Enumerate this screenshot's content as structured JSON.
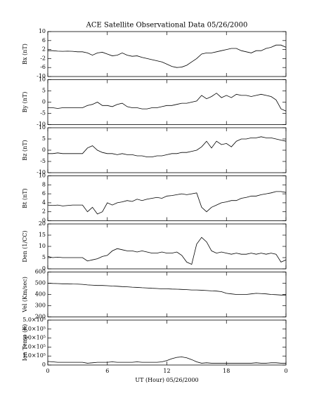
{
  "chart_data": [
    {
      "type": "line",
      "title": "ACE Satellite Observational Data  05/26/2000",
      "ylabel": "Bx (nT)",
      "color": "#000000",
      "x": [
        0,
        0.5,
        1,
        1.5,
        2,
        2.5,
        3,
        3.5,
        4,
        4.5,
        5,
        5.5,
        6,
        6.5,
        7,
        7.5,
        8,
        8.5,
        9,
        9.5,
        10,
        10.5,
        11,
        11.5,
        12,
        12.5,
        13,
        13.5,
        14,
        14.5,
        15,
        15.5,
        16,
        16.5,
        17,
        17.5,
        18,
        18.5,
        19,
        19.5,
        20,
        20.5,
        21,
        21.5,
        22,
        22.5,
        23,
        23.5,
        24
      ],
      "values": [
        1.5,
        1.5,
        1.3,
        1.2,
        1.3,
        1.2,
        1,
        1,
        0.5,
        -0.5,
        0.5,
        0.8,
        0,
        -0.8,
        -0.5,
        0.5,
        -0.5,
        -1,
        -0.8,
        -1.5,
        -2,
        -2.5,
        -3,
        -3.5,
        -4.5,
        -5.5,
        -6,
        -5.8,
        -5,
        -3.5,
        -2,
        0,
        0.5,
        0.5,
        1,
        1.5,
        2,
        2.5,
        2.5,
        1.5,
        1,
        0.5,
        1.5,
        1.5,
        2.5,
        3,
        4,
        4,
        3
      ],
      "xlim": [
        0,
        24
      ],
      "ylim": [
        -10,
        10
      ],
      "yticks": [
        -10,
        -6,
        -2,
        2,
        6,
        10
      ]
    },
    {
      "type": "line",
      "ylabel": "By (nT)",
      "color": "#000000",
      "x": [
        0,
        0.5,
        1,
        1.5,
        2,
        2.5,
        3,
        3.5,
        4,
        4.5,
        5,
        5.5,
        6,
        6.5,
        7,
        7.5,
        8,
        8.5,
        9,
        9.5,
        10,
        10.5,
        11,
        11.5,
        12,
        12.5,
        13,
        13.5,
        14,
        14.5,
        15,
        15.5,
        16,
        16.5,
        17,
        17.5,
        18,
        18.5,
        19,
        19.5,
        20,
        20.5,
        21,
        21.5,
        22,
        22.5,
        23,
        23.5,
        24
      ],
      "values": [
        -2.5,
        -2.5,
        -2.8,
        -2.5,
        -2.5,
        -2.5,
        -2.5,
        -2.5,
        -1.5,
        -1,
        0,
        -1.5,
        -1.5,
        -2,
        -1,
        -0.5,
        -2,
        -2.5,
        -2.5,
        -3,
        -3,
        -2.5,
        -2.5,
        -2,
        -1.5,
        -1.5,
        -1,
        -0.5,
        -0.5,
        0,
        0.5,
        3,
        1.5,
        2.5,
        4,
        2,
        3,
        2,
        3.5,
        3,
        3,
        2.5,
        3,
        3.5,
        3,
        2.5,
        1,
        -3,
        -4
      ],
      "xlim": [
        0,
        24
      ],
      "ylim": [
        -10,
        10
      ],
      "yticks": [
        -10,
        -5,
        0,
        5,
        10
      ]
    },
    {
      "type": "line",
      "ylabel": "Bz (nT)",
      "color": "#000000",
      "x": [
        0,
        0.5,
        1,
        1.5,
        2,
        2.5,
        3,
        3.5,
        4,
        4.5,
        5,
        5.5,
        6,
        6.5,
        7,
        7.5,
        8,
        8.5,
        9,
        9.5,
        10,
        10.5,
        11,
        11.5,
        12,
        12.5,
        13,
        13.5,
        14,
        14.5,
        15,
        15.5,
        16,
        16.5,
        17,
        17.5,
        18,
        18.5,
        19,
        19.5,
        20,
        20.5,
        21,
        21.5,
        22,
        22.5,
        23,
        23.5,
        24
      ],
      "values": [
        -1.5,
        -1.5,
        -1.2,
        -1.5,
        -1.5,
        -1.5,
        -1.5,
        -1.5,
        1,
        2,
        0,
        -1,
        -1.5,
        -1.5,
        -2,
        -1.5,
        -2,
        -2,
        -2.5,
        -2.5,
        -3,
        -3,
        -2.5,
        -2.5,
        -2,
        -1.5,
        -1.5,
        -1,
        -1,
        -0.5,
        0,
        1.5,
        4,
        1,
        4,
        2.5,
        3,
        1.5,
        4,
        5,
        5,
        5.5,
        5.5,
        6,
        5.5,
        5.5,
        5,
        4.5,
        4
      ],
      "xlim": [
        0,
        24
      ],
      "ylim": [
        -10,
        10
      ],
      "yticks": [
        -10,
        -5,
        0,
        5,
        10
      ]
    },
    {
      "type": "line",
      "ylabel": "Bt (nT)",
      "color": "#000000",
      "x": [
        0,
        0.5,
        1,
        1.5,
        2,
        2.5,
        3,
        3.5,
        4,
        4.5,
        5,
        5.5,
        6,
        6.5,
        7,
        7.5,
        8,
        8.5,
        9,
        9.5,
        10,
        10.5,
        11,
        11.5,
        12,
        12.5,
        13,
        13.5,
        14,
        14.5,
        15,
        15.5,
        16,
        16.5,
        17,
        17.5,
        18,
        18.5,
        19,
        19.5,
        20,
        20.5,
        21,
        21.5,
        22,
        22.5,
        23,
        23.5,
        24
      ],
      "values": [
        3.5,
        3.4,
        3.5,
        3.3,
        3.4,
        3.5,
        3.5,
        3.5,
        2,
        3,
        1.5,
        2,
        4,
        3.5,
        4,
        4.2,
        4.5,
        4.3,
        4.8,
        4.5,
        4.8,
        5,
        5.2,
        5,
        5.5,
        5.6,
        5.8,
        6,
        5.8,
        6,
        6.2,
        3,
        2,
        3,
        3.5,
        4,
        4.2,
        4.5,
        4.5,
        5,
        5.2,
        5.5,
        5.5,
        5.8,
        6,
        6.2,
        6.5,
        6.5,
        6.3
      ],
      "xlim": [
        0,
        24
      ],
      "ylim": [
        0,
        10
      ],
      "yticks": [
        0,
        2,
        4,
        6,
        8,
        10
      ]
    },
    {
      "type": "line",
      "ylabel": "Den (1/CC)",
      "color": "#000000",
      "x": [
        0,
        0.5,
        1,
        1.5,
        2,
        2.5,
        3,
        3.5,
        4,
        4.5,
        5,
        5.5,
        6,
        6.5,
        7,
        7.5,
        8,
        8.5,
        9,
        9.5,
        10,
        10.5,
        11,
        11.5,
        12,
        12.5,
        13,
        13.5,
        14,
        14.5,
        15,
        15.5,
        16,
        16.5,
        17,
        17.5,
        18,
        18.5,
        19,
        19.5,
        20,
        20.5,
        21,
        21.5,
        22,
        22.5,
        23,
        23.5,
        24
      ],
      "values": [
        5.5,
        5,
        5.2,
        5,
        5,
        5,
        5,
        5,
        3.5,
        4,
        4.5,
        5.5,
        6,
        8,
        9,
        8.5,
        8,
        8,
        7.5,
        8,
        7.5,
        7,
        7,
        7.5,
        7,
        7,
        7.5,
        6,
        3,
        2,
        11,
        14,
        12,
        8,
        7,
        7.5,
        7,
        6.5,
        7,
        6.5,
        6.5,
        7,
        6.5,
        7,
        6.5,
        7,
        6.5,
        3,
        4
      ],
      "xlim": [
        0,
        24
      ],
      "ylim": [
        0,
        20
      ],
      "yticks": [
        0,
        5,
        10,
        15,
        20
      ]
    },
    {
      "type": "line",
      "ylabel": "Vel (Km/sec)",
      "color": "#000000",
      "x": [
        0,
        0.5,
        1,
        1.5,
        2,
        2.5,
        3,
        3.5,
        4,
        4.5,
        5,
        5.5,
        6,
        6.5,
        7,
        7.5,
        8,
        8.5,
        9,
        9.5,
        10,
        10.5,
        11,
        11.5,
        12,
        12.5,
        13,
        13.5,
        14,
        14.5,
        15,
        15.5,
        16,
        16.5,
        17,
        17.5,
        18,
        18.5,
        19,
        19.5,
        20,
        20.5,
        21,
        21.5,
        22,
        22.5,
        23,
        23.5,
        24
      ],
      "values": [
        500,
        498,
        497,
        495,
        495,
        493,
        492,
        490,
        485,
        483,
        480,
        480,
        478,
        475,
        473,
        470,
        468,
        465,
        463,
        460,
        458,
        455,
        453,
        450,
        450,
        448,
        447,
        445,
        443,
        440,
        440,
        438,
        435,
        432,
        430,
        425,
        410,
        405,
        400,
        400,
        400,
        405,
        410,
        408,
        405,
        400,
        398,
        395,
        395
      ],
      "xlim": [
        0,
        24
      ],
      "ylim": [
        200,
        600
      ],
      "yticks": [
        200,
        300,
        400,
        500,
        600
      ]
    },
    {
      "type": "line",
      "ylabel": "Ion Temp (K)",
      "xlabel": "UT (Hour)  05/26/2000",
      "color": "#000000",
      "x": [
        0,
        0.5,
        1,
        1.5,
        2,
        2.5,
        3,
        3.5,
        4,
        4.5,
        5,
        5.5,
        6,
        6.5,
        7,
        7.5,
        8,
        8.5,
        9,
        9.5,
        10,
        10.5,
        11,
        11.5,
        12,
        12.5,
        13,
        13.5,
        14,
        14.5,
        15,
        15.5,
        16,
        16.5,
        17,
        17.5,
        18,
        18.5,
        19,
        19.5,
        20,
        20.5,
        21,
        21.5,
        22,
        22.5,
        23,
        23.5,
        24
      ],
      "values": [
        40000,
        35000,
        30000,
        30000,
        30000,
        30000,
        30000,
        30000,
        20000,
        25000,
        30000,
        30000,
        30000,
        35000,
        30000,
        30000,
        30000,
        30000,
        35000,
        30000,
        30000,
        30000,
        30000,
        35000,
        50000,
        70000,
        85000,
        90000,
        80000,
        60000,
        35000,
        20000,
        25000,
        20000,
        20000,
        20000,
        20000,
        20000,
        20000,
        20000,
        20000,
        20000,
        25000,
        20000,
        20000,
        25000,
        25000,
        20000,
        20000
      ],
      "xlim": [
        0,
        24
      ],
      "ylim": [
        0,
        500000
      ],
      "yticks": [
        0,
        {
          "value": 100000,
          "label": "1.0×10⁵"
        },
        {
          "value": 200000,
          "label": "2.0×10⁵"
        },
        {
          "value": 300000,
          "label": "3.0×10⁵"
        },
        {
          "value": 400000,
          "label": "4.0×10⁵"
        },
        {
          "value": 500000,
          "label": "5.0×10⁵"
        }
      ],
      "xticks": [
        0,
        6,
        12,
        18,
        {
          "value": 24,
          "label": "0"
        }
      ]
    }
  ]
}
